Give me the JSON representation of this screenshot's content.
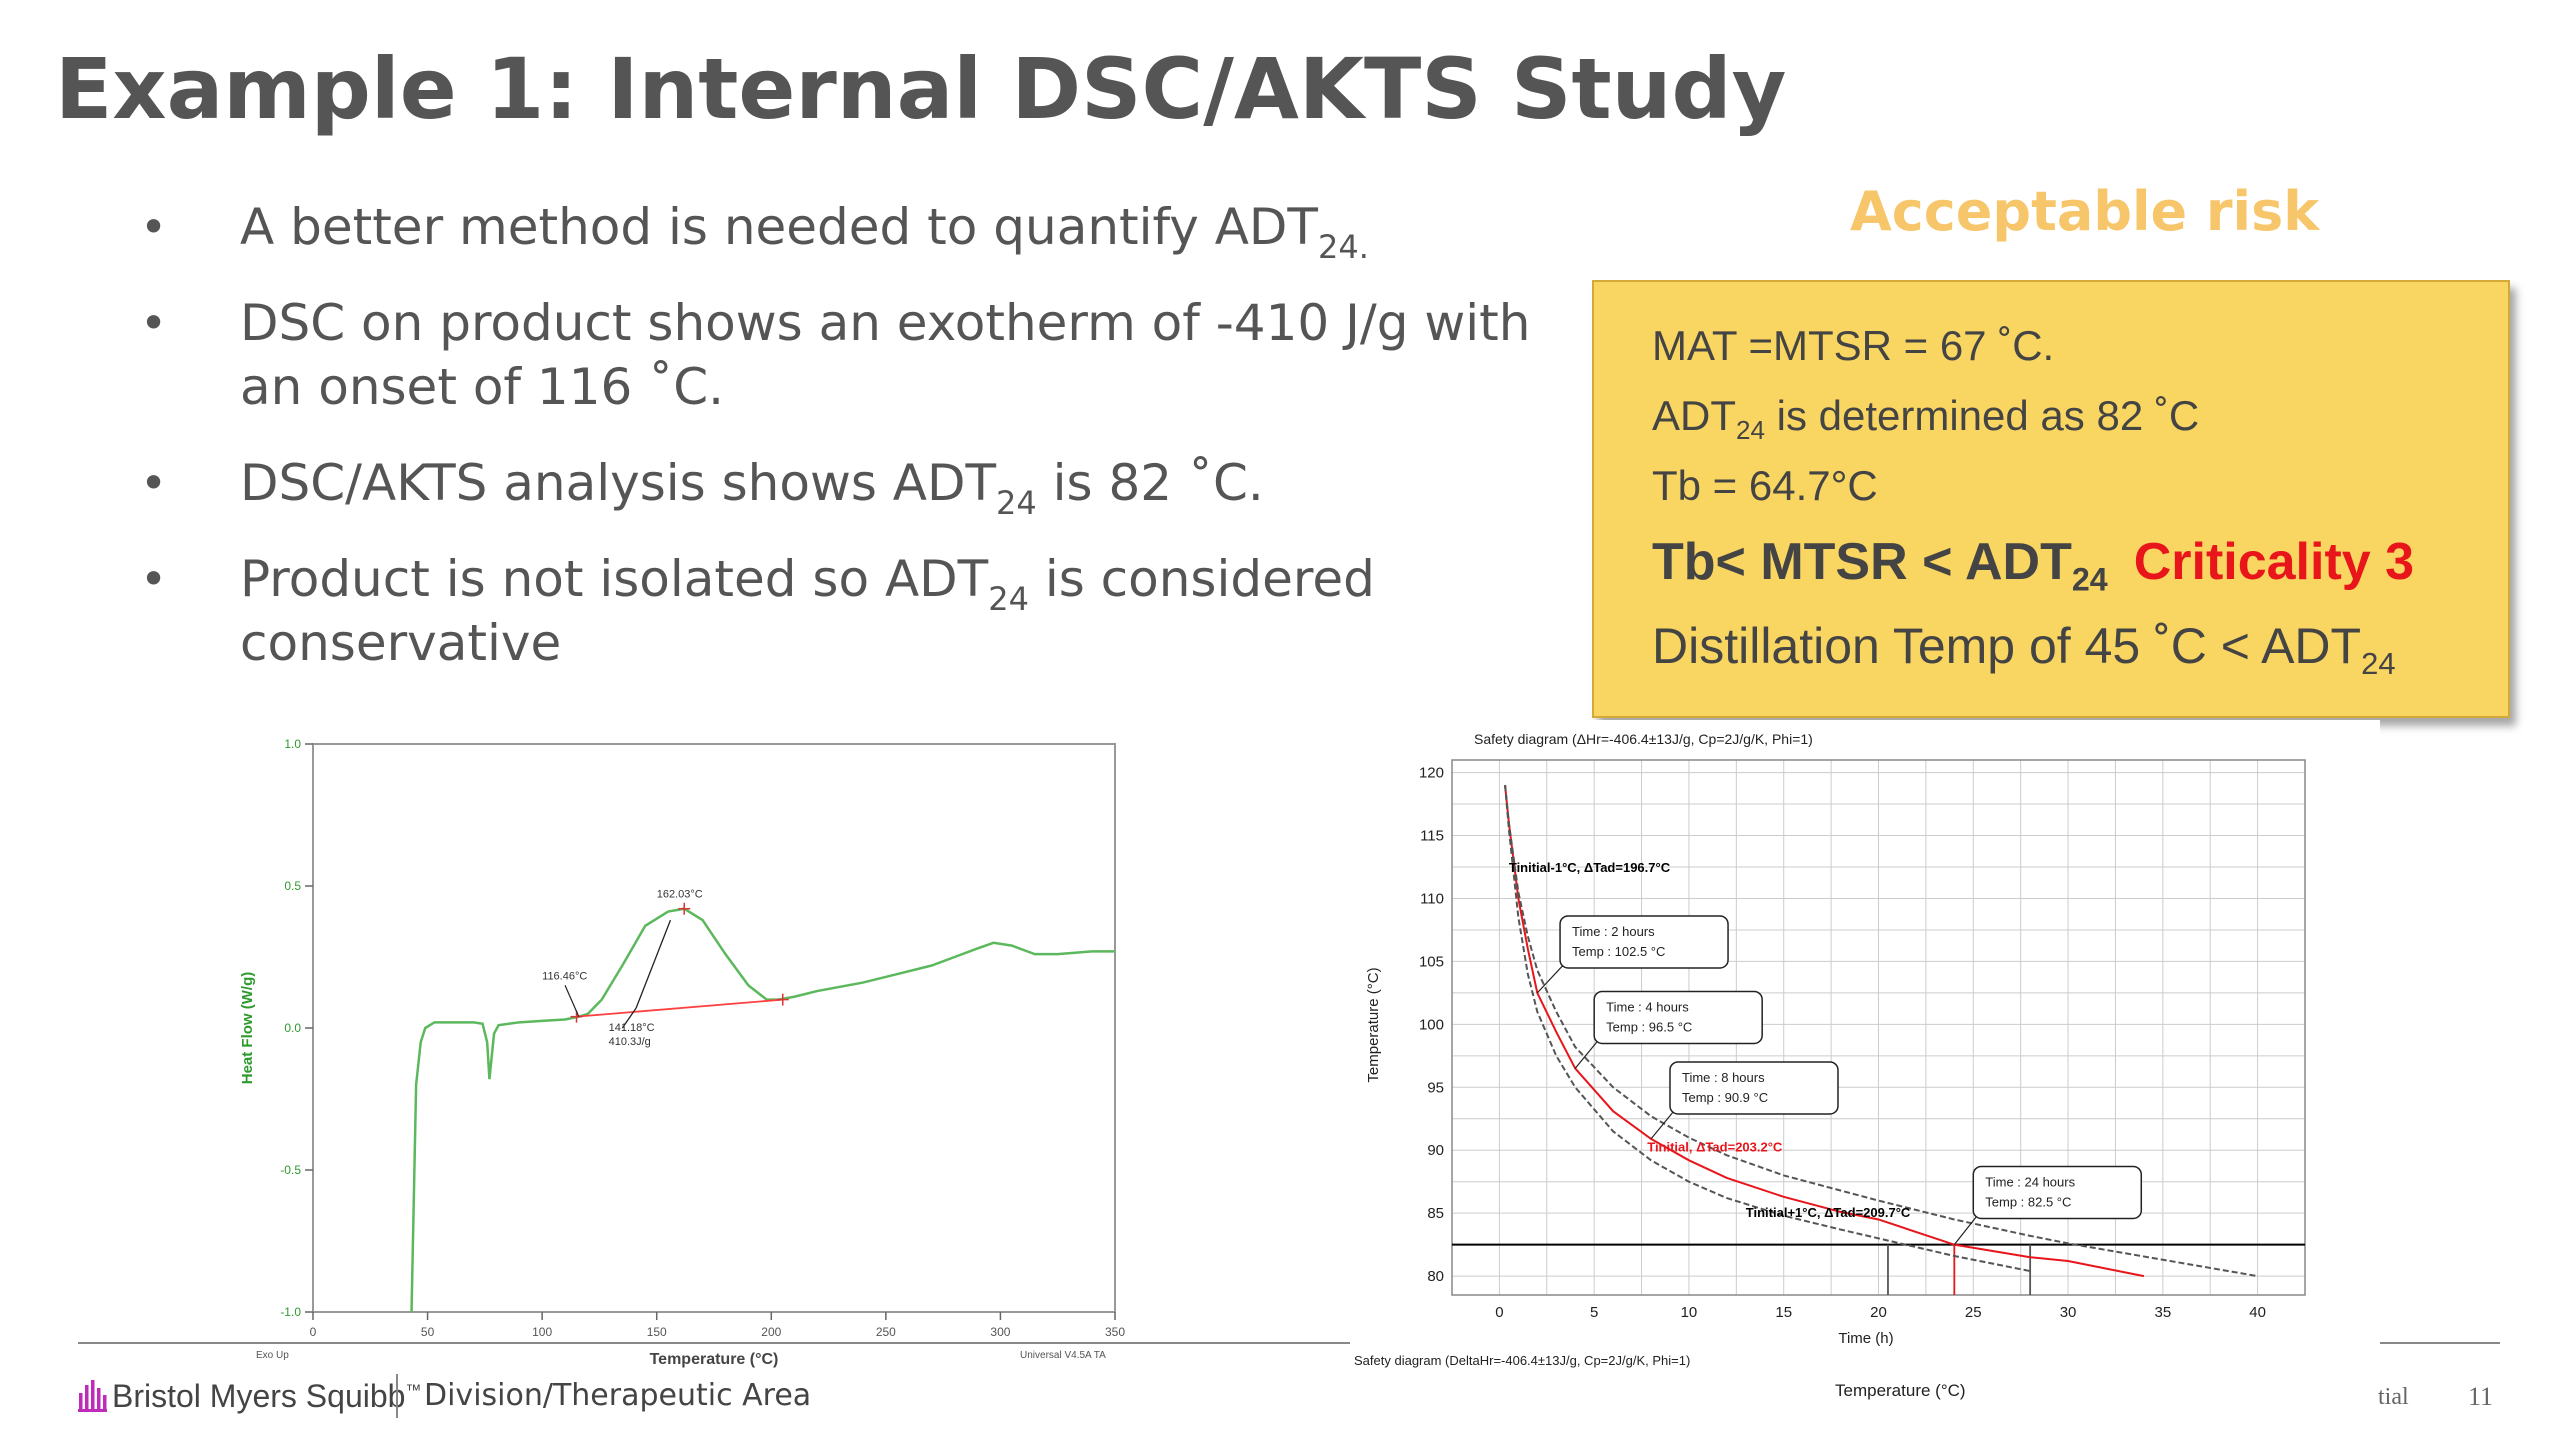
{
  "title": "Example 1: Internal DSC/AKTS Study",
  "bullets": [
    {
      "text": "A better method is needed to quantify ADT",
      "sub": "24.",
      "tail": ""
    },
    {
      "text": "DSC on product shows an exotherm of -410 J/g with an onset of 116 ˚C.",
      "sub": "",
      "tail": ""
    },
    {
      "text": "DSC/AKTS analysis shows ADT",
      "sub": "24",
      "tail": " is 82 ˚C."
    },
    {
      "text": "Product is not isolated so ADT",
      "sub": "24",
      "tail": " is considered conservative"
    }
  ],
  "acceptable_risk": "Acceptable risk",
  "box": {
    "line1": "MAT =MTSR = 67 ˚C.",
    "line2_a": "ADT",
    "line2_sub": "24",
    "line2_b": " is determined as 82 ˚C",
    "line3": "Tb = 64.7°C",
    "line4_a": "Tb< MTSR < ADT",
    "line4_sub": "24",
    "line4_crit": "Criticality 3",
    "line5_a": "Distillation Temp of 45 ˚C < ADT",
    "line5_sub": "24"
  },
  "footer": {
    "logo": "Bristol Myers Squibb",
    "logo_tm": "™",
    "division": "Division/Therapeutic Area",
    "conf": "tial",
    "page": "11"
  },
  "colors": {
    "title": "#555555",
    "accent_orange": "#f7c66b",
    "box_fill": "#f9d561",
    "criticality": "#e8151b",
    "dsc_curve": "#5cb85c",
    "baseline": "#ff4040",
    "logo_purple": "#be2bbb"
  },
  "chart_data": [
    {
      "type": "line",
      "xlabel": "Temperature (°C)",
      "ylabel": "Heat Flow (W/g)",
      "xlim": [
        0,
        350
      ],
      "ylim": [
        -1.0,
        1.0
      ],
      "xticks": [
        "0",
        "50",
        "100",
        "150",
        "200",
        "250",
        "300",
        "350"
      ],
      "yticks": [
        "1.0",
        "0.5",
        "0.0",
        "-0.5",
        "-1.0"
      ],
      "corner_left": "Exo Up",
      "corner_right": "Universal V4.5A TA",
      "annotations": {
        "onset": "116.46°C",
        "peak": "162.03°C",
        "integral_a": "141.18°C",
        "integral_b": "410.3J/g"
      },
      "series": [
        {
          "values_xy": [
            [
              43,
              -1.0
            ],
            [
              45,
              -0.2
            ],
            [
              47,
              -0.05
            ],
            [
              49,
              0.0
            ],
            [
              53,
              0.02
            ],
            [
              60,
              0.02
            ],
            [
              70,
              0.02
            ],
            [
              74,
              0.015
            ],
            [
              76,
              -0.05
            ],
            [
              77,
              -0.18
            ],
            [
              78,
              -0.1
            ],
            [
              79,
              -0.02
            ],
            [
              81,
              0.01
            ],
            [
              90,
              0.02
            ],
            [
              100,
              0.025
            ],
            [
              110,
              0.03
            ],
            [
              116,
              0.04
            ],
            [
              120,
              0.05
            ],
            [
              126,
              0.1
            ],
            [
              135,
              0.22
            ],
            [
              145,
              0.36
            ],
            [
              155,
              0.41
            ],
            [
              162,
              0.42
            ],
            [
              170,
              0.38
            ],
            [
              180,
              0.26
            ],
            [
              190,
              0.15
            ],
            [
              198,
              0.1
            ],
            [
              203,
              0.1
            ],
            [
              210,
              0.11
            ],
            [
              220,
              0.13
            ],
            [
              240,
              0.16
            ],
            [
              255,
              0.19
            ],
            [
              270,
              0.22
            ],
            [
              280,
              0.25
            ],
            [
              290,
              0.28
            ],
            [
              297,
              0.3
            ],
            [
              305,
              0.29
            ],
            [
              315,
              0.26
            ],
            [
              325,
              0.26
            ],
            [
              340,
              0.27
            ],
            [
              350,
              0.27
            ]
          ]
        }
      ]
    },
    {
      "type": "line",
      "title": "Safety diagram (ΔHr=-406.4±13J/g, Cp=2J/g/K, Phi=1)",
      "bottom_title": "Safety diagram (DeltaHr=-406.4±13J/g, Cp=2J/g/K, Phi=1)",
      "xlabel": "Time (h)",
      "ylabel": "Temperature (°C)",
      "bottom_axis_label": "Temperature (°C)",
      "xlim": [
        -2.5,
        42.5
      ],
      "ylim": [
        78.5,
        121
      ],
      "xticks": [
        0,
        5,
        10,
        15,
        20,
        25,
        30,
        35,
        40
      ],
      "yticks": [
        80,
        85,
        90,
        95,
        100,
        105,
        110,
        115,
        120
      ],
      "threshold_y": 82.5,
      "curve_labels": [
        {
          "text": "Tinitial-1°C, ΔTad=196.7°C",
          "x": 0.5,
          "y": 112.1,
          "color": "#000000"
        },
        {
          "text": "Tinitial, ΔTad=203.2°C",
          "x": 7.8,
          "y": 89.9,
          "color": "#e8151b"
        },
        {
          "text": "Tinitial+1°C, ΔTad=209.7°C",
          "x": 13.0,
          "y": 84.7,
          "color": "#000000"
        }
      ],
      "callouts": [
        {
          "line1": "Time : 2 hours",
          "line2": "Temp : 102.5 °C",
          "x": 2,
          "y": 102.5,
          "bx": 3.2,
          "by": 107.5
        },
        {
          "line1": "Time : 4 hours",
          "line2": "Temp : 96.5 °C",
          "x": 4,
          "y": 96.5,
          "bx": 5.0,
          "by": 101.5
        },
        {
          "line1": "Time : 8 hours",
          "line2": "Temp : 90.9 °C",
          "x": 8,
          "y": 90.9,
          "bx": 9.0,
          "by": 95.9
        },
        {
          "line1": "Time : 24 hours",
          "line2": "Temp : 82.5 °C",
          "x": 24,
          "y": 82.5,
          "bx": 25.0,
          "by": 87.6
        }
      ],
      "series": [
        {
          "name": "Tinitial",
          "color": "#e8151b",
          "values_xy": [
            [
              0.3,
              119
            ],
            [
              0.5,
              116
            ],
            [
              1,
              110
            ],
            [
              1.5,
              106
            ],
            [
              2,
              102.5
            ],
            [
              3,
              99.4
            ],
            [
              4,
              96.5
            ],
            [
              6,
              93.1
            ],
            [
              8,
              90.9
            ],
            [
              10,
              89.2
            ],
            [
              12,
              87.8
            ],
            [
              15,
              86.3
            ],
            [
              18,
              85.1
            ],
            [
              20,
              84.5
            ],
            [
              24,
              82.5
            ],
            [
              28,
              81.5
            ],
            [
              30,
              81.2
            ],
            [
              34,
              80.0
            ]
          ]
        },
        {
          "name": "Tinitial-1",
          "color": "#555555",
          "values_xy": [
            [
              0.3,
              119
            ],
            [
              0.5,
              116
            ],
            [
              1,
              110.5
            ],
            [
              1.5,
              107
            ],
            [
              2,
              104.3
            ],
            [
              3,
              101
            ],
            [
              4,
              98.2
            ],
            [
              6,
              95
            ],
            [
              8,
              92.7
            ],
            [
              10,
              91
            ],
            [
              12,
              89.6
            ],
            [
              15,
              88
            ],
            [
              18,
              86.8
            ],
            [
              20,
              86
            ],
            [
              24,
              84.5
            ],
            [
              28,
              83.2
            ],
            [
              30,
              82.6
            ],
            [
              35,
              81.3
            ],
            [
              40,
              80.0
            ]
          ]
        },
        {
          "name": "Tinitial+1",
          "color": "#555555",
          "values_xy": [
            [
              0.3,
              119
            ],
            [
              0.5,
              115.5
            ],
            [
              1,
              108.5
            ],
            [
              1.5,
              104
            ],
            [
              2,
              101
            ],
            [
              3,
              97.5
            ],
            [
              4,
              95
            ],
            [
              6,
              91.5
            ],
            [
              8,
              89.2
            ],
            [
              10,
              87.5
            ],
            [
              12,
              86.2
            ],
            [
              15,
              84.8
            ],
            [
              18,
              83.7
            ],
            [
              20,
              83.0
            ],
            [
              24,
              81.6
            ],
            [
              28,
              80.4
            ]
          ]
        }
      ]
    }
  ]
}
